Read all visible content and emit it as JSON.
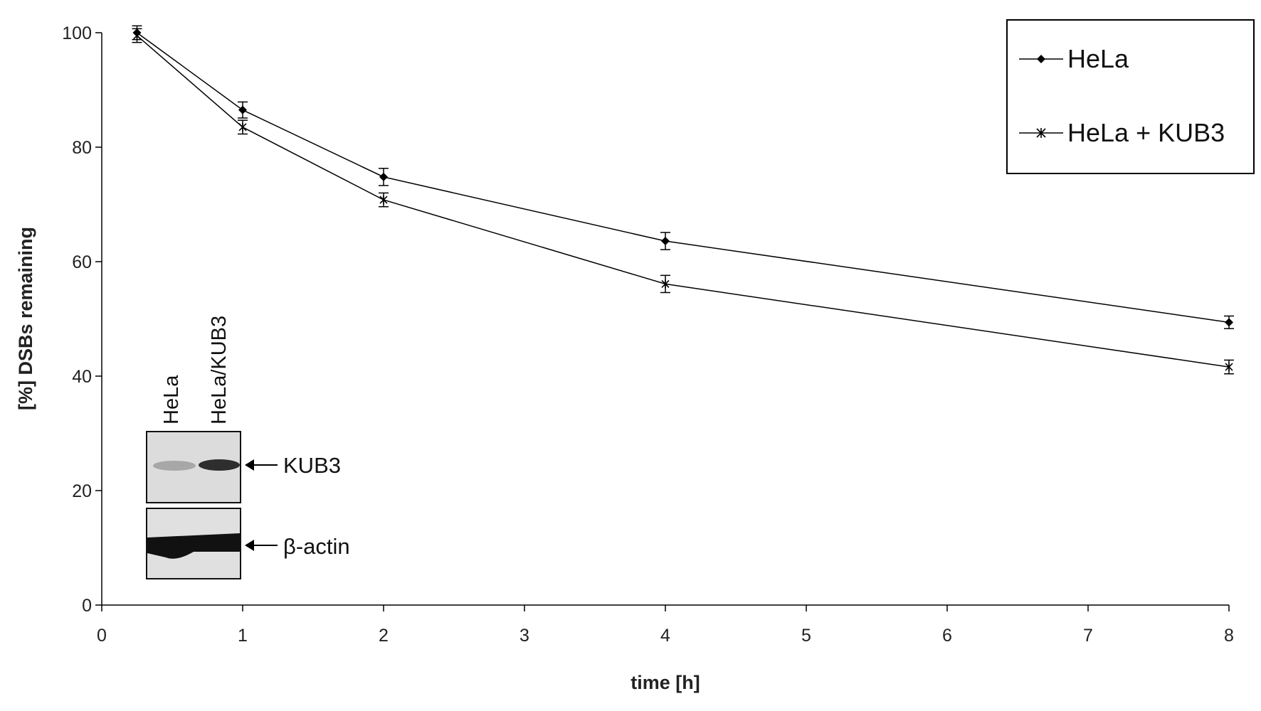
{
  "chart_data": {
    "type": "line",
    "title": "",
    "xlabel": "time [h]",
    "ylabel": "[%] DSBs remaining",
    "xlim": [
      0,
      8
    ],
    "ylim": [
      0,
      100
    ],
    "x_tick_labels": [
      "0",
      "1",
      "2",
      "3",
      "4",
      "5",
      "6",
      "7",
      "8"
    ],
    "y_tick_labels": [
      "0",
      "20",
      "40",
      "60",
      "80",
      "100"
    ],
    "grid": false,
    "legend_position": "top-right",
    "series": [
      {
        "name": "HeLa",
        "marker": "diamond",
        "x": [
          0.25,
          1,
          2,
          4,
          8
        ],
        "y": [
          100,
          86.5,
          74.8,
          63.6,
          49.4
        ],
        "error": [
          1.2,
          1.4,
          1.5,
          1.5,
          1.1
        ]
      },
      {
        "name": "HeLa + KUB3",
        "marker": "star",
        "x": [
          0.25,
          1,
          2,
          4,
          8
        ],
        "y": [
          99.5,
          83.5,
          70.8,
          56.1,
          41.6
        ],
        "error": [
          1.2,
          1.2,
          1.2,
          1.5,
          1.2
        ]
      }
    ]
  },
  "inset": {
    "lane_labels": [
      "HeLa",
      "HeLa/KUB3"
    ],
    "band_labels": [
      "KUB3",
      "β-actin"
    ]
  }
}
